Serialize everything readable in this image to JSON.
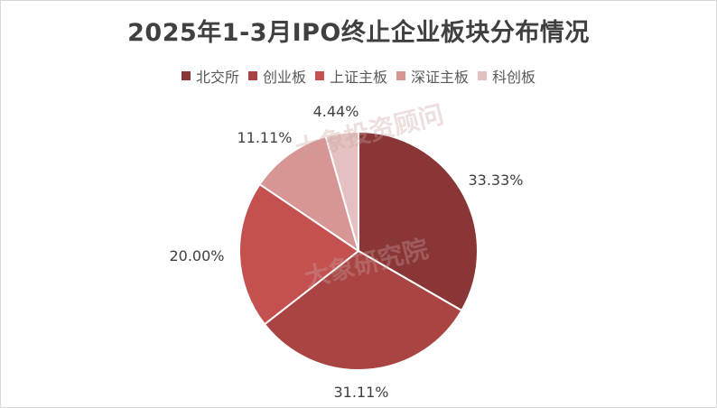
{
  "chart_data": {
    "type": "pie",
    "title": "2025年1-3月IPO终止企业板块分布情况",
    "categories": [
      "北交所",
      "创业板",
      "上证主板",
      "深证主板",
      "科创板"
    ],
    "values": [
      33.33,
      31.11,
      20.0,
      11.11,
      4.44
    ],
    "labels": [
      "33.33%",
      "31.11%",
      "20.00%",
      "11.11%",
      "4.44%"
    ],
    "colors": [
      "#8b3636",
      "#a94442",
      "#c45150",
      "#d79593",
      "#e4c1c0"
    ],
    "legend": "top"
  },
  "watermarks": [
    "大象投资顾问",
    "大象研究院"
  ]
}
